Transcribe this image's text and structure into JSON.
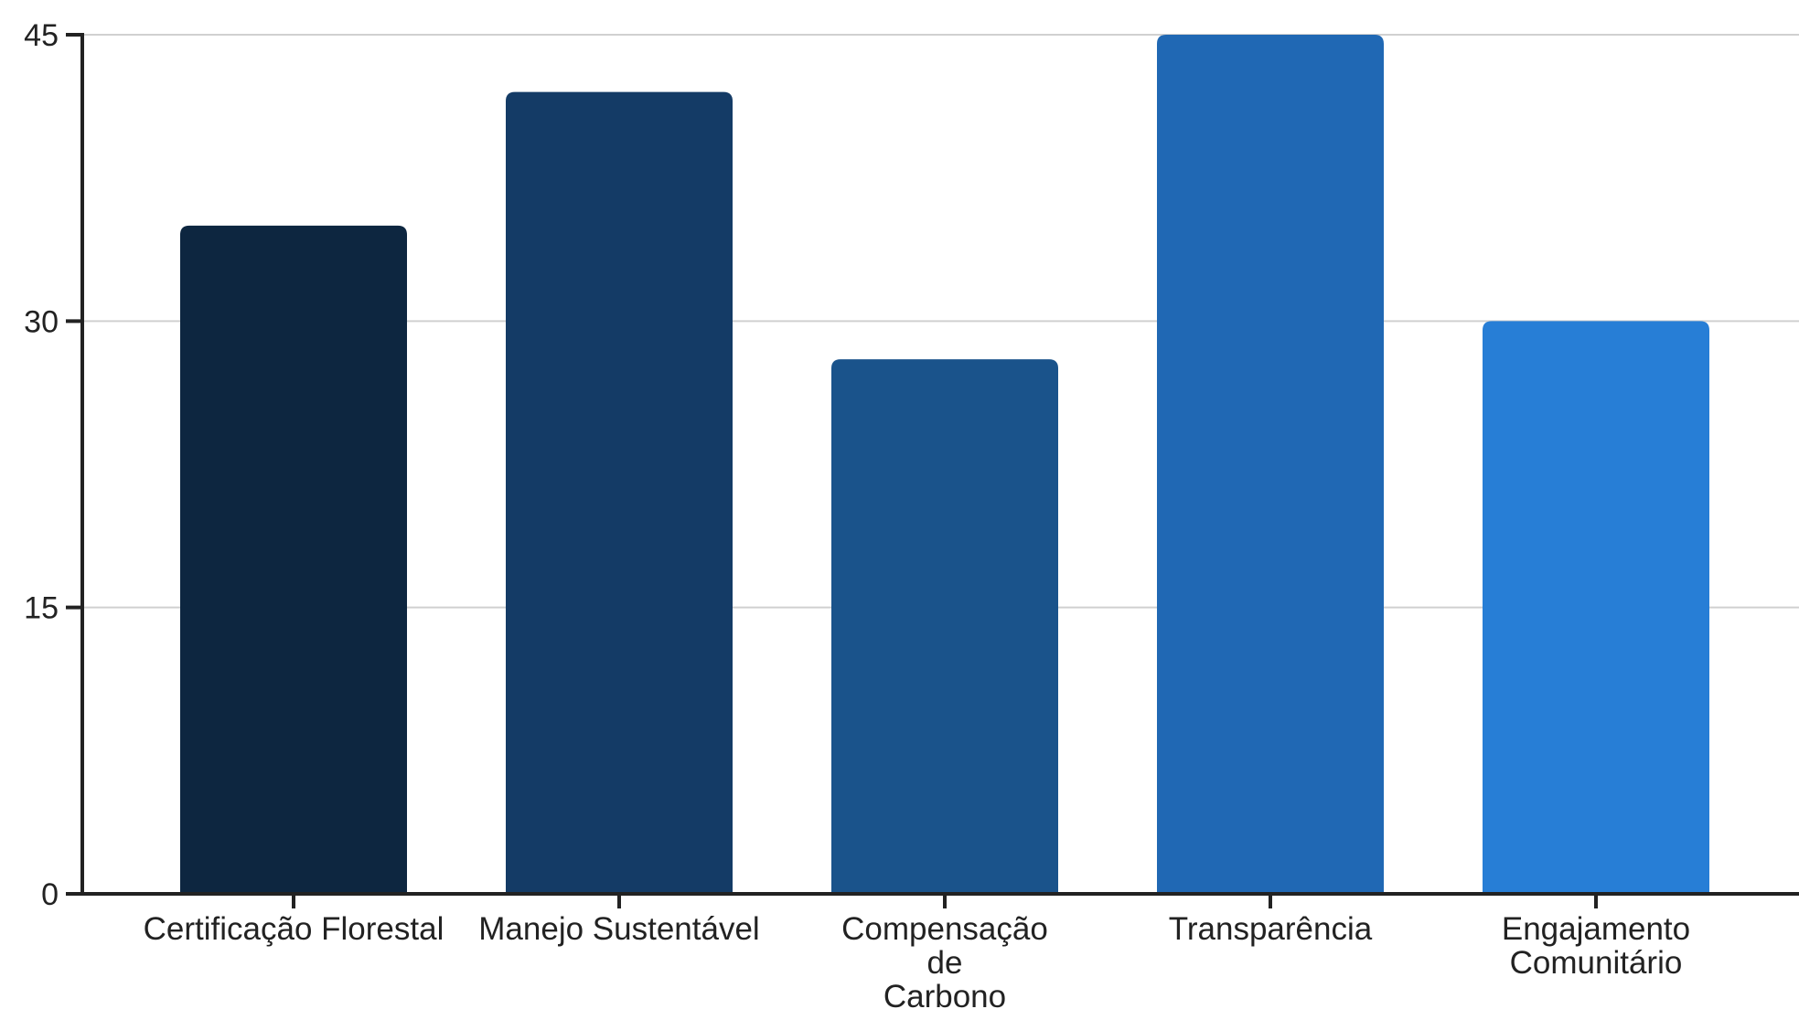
{
  "chart_data": {
    "type": "bar",
    "title": "",
    "xlabel": "",
    "ylabel": "",
    "categories": [
      "Certificação Florestal",
      "Manejo Sustentável",
      "Compensação de Carbono",
      "Transparência",
      "Engajamento Comunitário"
    ],
    "category_label_lines": [
      [
        "Certificação Florestal"
      ],
      [
        "Manejo Sustentável"
      ],
      [
        "Compensação",
        "de",
        "Carbono"
      ],
      [
        "Transparência"
      ],
      [
        "Engajamento",
        "Comunitário"
      ]
    ],
    "values": [
      35,
      42,
      28,
      45,
      30
    ],
    "bar_colors": [
      "#0d2640",
      "#143b66",
      "#1a538b",
      "#2068b4",
      "#277ed6"
    ],
    "ylim": [
      0,
      45
    ],
    "yticks": [
      0,
      15,
      30,
      45
    ],
    "grid": true,
    "legend": false
  }
}
